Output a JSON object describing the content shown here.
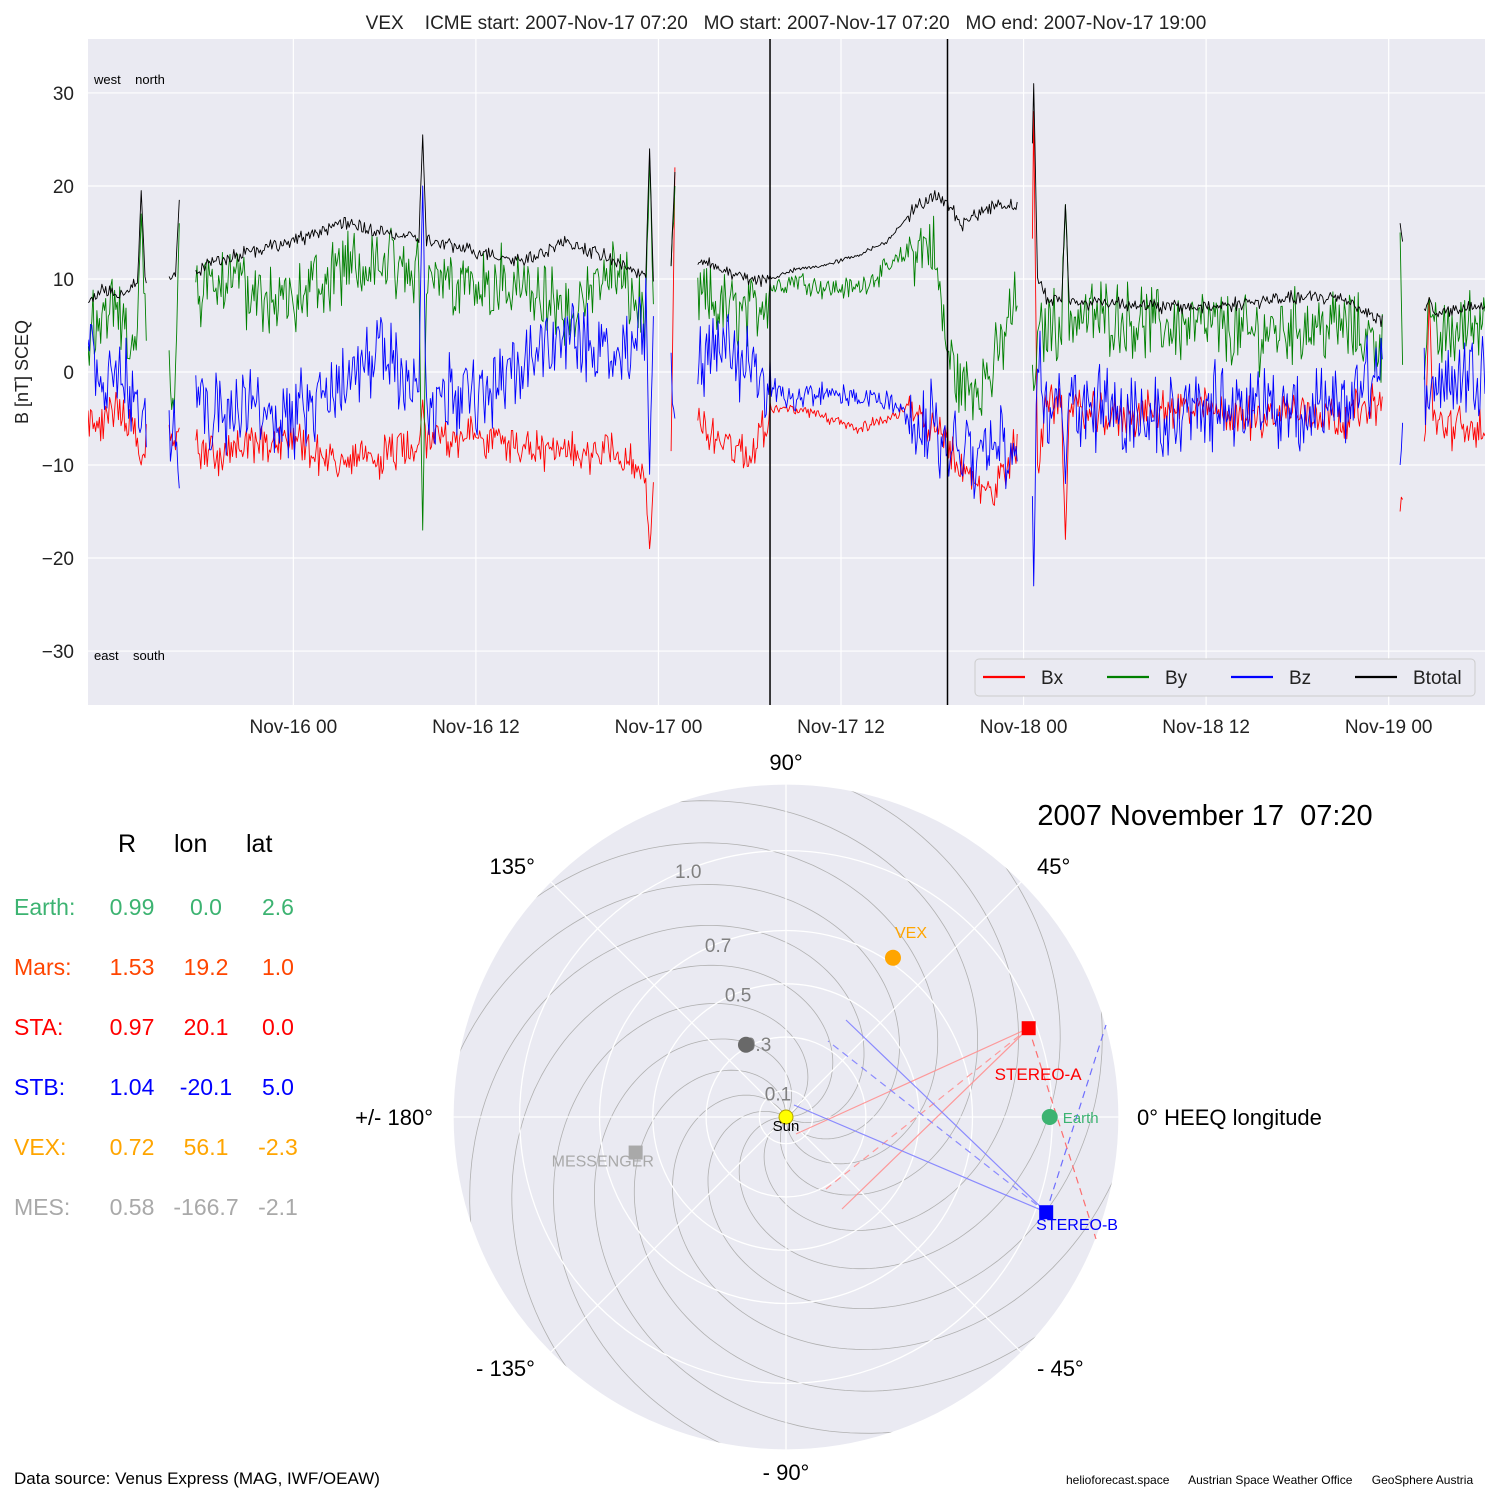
{
  "top_title": "VEX    ICME start: 2007-Nov-17 07:20   MO start: 2007-Nov-17 07:20   MO end: 2007-Nov-17 19:00",
  "chart_data": [
    {
      "type": "line",
      "title": "VEX    ICME start: 2007-Nov-17 07:20   MO start: 2007-Nov-17 07:20   MO end: 2007-Nov-17 19:00",
      "ylabel": "B [nT] SCEQ",
      "xlabel": "",
      "ylim": [
        -35.8,
        35.8
      ],
      "xlim": [
        "2007-11-15 10:30",
        "2007-11-19 06:20"
      ],
      "yticks": [
        30,
        20,
        10,
        0,
        -10,
        -20,
        -30
      ],
      "ytick_labels": [
        "30",
        "20",
        "10",
        "0",
        "−10",
        "−20",
        "−30"
      ],
      "xticks": [
        "2007-11-16 00:00",
        "2007-11-16 12:00",
        "2007-11-17 00:00",
        "2007-11-17 12:00",
        "2007-11-18 00:00",
        "2007-11-18 12:00",
        "2007-11-19 00:00"
      ],
      "xtick_labels": [
        "Nov-16 00",
        "Nov-16 12",
        "Nov-17 00",
        "Nov-17 12",
        "Nov-18 00",
        "Nov-18 12",
        "Nov-19 00"
      ],
      "grid": true,
      "legend_position": "bottom-right",
      "corner_labels": {
        "top": "west    north",
        "bottom": "east    south"
      },
      "vertical_lines": [
        "2007-11-17 07:20",
        "2007-11-17 19:00"
      ],
      "gaps": [
        [
          "2007-11-15 14:20",
          "2007-11-15 15:50"
        ],
        [
          "2007-11-15 16:30",
          "2007-11-15 17:35"
        ],
        [
          "2007-11-16 23:40",
          "2007-11-17 00:50"
        ],
        [
          "2007-11-17 01:05",
          "2007-11-17 02:35"
        ],
        [
          "2007-11-17 23:35",
          "2007-11-18 00:35"
        ],
        [
          "2007-11-18 23:35",
          "2007-11-19 00:45"
        ],
        [
          "2007-11-19 00:55",
          "2007-11-19 02:20"
        ]
      ],
      "series": [
        {
          "name": "Bx",
          "color": "#ff0000",
          "x": [
            "2007-11-15 10:30",
            "2007-11-15 11:30",
            "2007-11-15 12:30",
            "2007-11-15 13:30",
            "2007-11-15 14:10",
            "2007-11-15 16:00",
            "2007-11-15 17:40",
            "2007-11-15 19:00",
            "2007-11-15 21:00",
            "2007-11-16 00:00",
            "2007-11-16 03:00",
            "2007-11-16 06:00",
            "2007-11-16 09:00",
            "2007-11-16 12:00",
            "2007-11-16 15:00",
            "2007-11-16 18:00",
            "2007-11-16 21:00",
            "2007-11-16 23:30",
            "2007-11-17 01:00",
            "2007-11-17 02:40",
            "2007-11-17 04:00",
            "2007-11-17 06:00",
            "2007-11-17 07:20",
            "2007-11-17 09:00",
            "2007-11-17 11:00",
            "2007-11-17 13:00",
            "2007-11-17 15:00",
            "2007-11-17 16:30",
            "2007-11-17 18:00",
            "2007-11-17 19:00",
            "2007-11-17 20:00",
            "2007-11-17 21:00",
            "2007-11-17 22:00",
            "2007-11-17 23:30",
            "2007-11-18 00:40",
            "2007-11-18 01:30",
            "2007-11-18 03:00",
            "2007-11-18 06:00",
            "2007-11-18 09:00",
            "2007-11-18 12:00",
            "2007-11-18 15:00",
            "2007-11-18 18:00",
            "2007-11-18 21:00",
            "2007-11-18 23:30",
            "2007-11-19 00:50",
            "2007-11-19 02:30",
            "2007-11-19 04:00",
            "2007-11-19 06:20"
          ],
          "values": [
            -5,
            -6,
            -3,
            -7,
            -8,
            -7,
            -8,
            -9,
            -8,
            -7,
            -10,
            -9,
            -7,
            -7,
            -8,
            -9,
            -8,
            -12,
            -9,
            -6,
            -7,
            -9,
            -4,
            -4,
            -5,
            -6,
            -5,
            -4,
            -6,
            -8,
            -11,
            -12,
            -13,
            -8,
            -12,
            -3,
            -4,
            -5,
            -4,
            -4,
            -5,
            -4,
            -5,
            -3,
            -12,
            -5,
            -6,
            -6
          ]
        },
        {
          "name": "By",
          "color": "#008000",
          "x": [
            "2007-11-15 10:30",
            "2007-11-15 11:30",
            "2007-11-15 12:30",
            "2007-11-15 13:30",
            "2007-11-15 14:10",
            "2007-11-15 16:00",
            "2007-11-15 17:40",
            "2007-11-15 19:00",
            "2007-11-15 21:00",
            "2007-11-16 00:00",
            "2007-11-16 03:00",
            "2007-11-16 06:00",
            "2007-11-16 09:00",
            "2007-11-16 12:00",
            "2007-11-16 15:00",
            "2007-11-16 18:00",
            "2007-11-16 21:00",
            "2007-11-16 23:30",
            "2007-11-17 01:00",
            "2007-11-17 02:40",
            "2007-11-17 04:00",
            "2007-11-17 06:00",
            "2007-11-17 07:20",
            "2007-11-17 09:00",
            "2007-11-17 11:00",
            "2007-11-17 13:00",
            "2007-11-17 15:00",
            "2007-11-17 16:30",
            "2007-11-17 18:00",
            "2007-11-17 19:00",
            "2007-11-17 20:00",
            "2007-11-17 21:00",
            "2007-11-17 22:00",
            "2007-11-17 23:30",
            "2007-11-18 00:40",
            "2007-11-18 01:30",
            "2007-11-18 03:00",
            "2007-11-18 06:00",
            "2007-11-18 09:00",
            "2007-11-18 12:00",
            "2007-11-18 15:00",
            "2007-11-18 18:00",
            "2007-11-18 21:00",
            "2007-11-18 23:30",
            "2007-11-19 00:50",
            "2007-11-19 02:30",
            "2007-11-19 04:00",
            "2007-11-19 06:20"
          ],
          "values": [
            5,
            6,
            7,
            2,
            8,
            -2,
            8,
            10,
            9,
            7,
            11,
            12,
            10,
            10,
            9,
            6,
            11,
            5,
            10,
            8,
            7,
            6,
            9,
            10,
            9,
            9,
            11,
            13,
            14,
            2,
            -2,
            -1,
            0,
            8,
            2,
            5,
            6,
            6,
            5,
            5,
            4,
            5,
            5,
            3,
            -5,
            3,
            4,
            6
          ]
        },
        {
          "name": "Bz",
          "color": "#0000ff",
          "x": [
            "2007-11-15 10:30",
            "2007-11-15 11:30",
            "2007-11-15 12:30",
            "2007-11-15 13:30",
            "2007-11-15 14:10",
            "2007-11-15 16:00",
            "2007-11-15 17:40",
            "2007-11-15 19:00",
            "2007-11-15 21:00",
            "2007-11-16 00:00",
            "2007-11-16 03:00",
            "2007-11-16 06:00",
            "2007-11-16 09:00",
            "2007-11-16 12:00",
            "2007-11-16 15:00",
            "2007-11-16 18:00",
            "2007-11-16 21:00",
            "2007-11-16 23:30",
            "2007-11-17 01:00",
            "2007-11-17 02:40",
            "2007-11-17 04:00",
            "2007-11-17 06:00",
            "2007-11-17 07:20",
            "2007-11-17 09:00",
            "2007-11-17 11:00",
            "2007-11-17 13:00",
            "2007-11-17 15:00",
            "2007-11-17 16:30",
            "2007-11-17 18:00",
            "2007-11-17 19:00",
            "2007-11-17 20:00",
            "2007-11-17 21:00",
            "2007-11-17 22:00",
            "2007-11-17 23:30",
            "2007-11-18 00:40",
            "2007-11-18 01:30",
            "2007-11-18 03:00",
            "2007-11-18 06:00",
            "2007-11-18 09:00",
            "2007-11-18 12:00",
            "2007-11-18 15:00",
            "2007-11-18 18:00",
            "2007-11-18 21:00",
            "2007-11-18 23:30",
            "2007-11-19 00:50",
            "2007-11-19 02:30",
            "2007-11-19 04:00",
            "2007-11-19 06:20"
          ],
          "values": [
            3,
            -2,
            1,
            -3,
            -4,
            -6,
            -2,
            -5,
            -3,
            -5,
            -2,
            2,
            -3,
            -2,
            1,
            4,
            2,
            6,
            -2,
            1,
            2,
            2,
            -2,
            -3,
            -2,
            -3,
            -3,
            -5,
            -6,
            -9,
            -8,
            -10,
            -7,
            -9,
            4,
            -4,
            -3,
            -4,
            -5,
            -4,
            -3,
            -5,
            -4,
            1,
            -7,
            0,
            -1,
            1
          ]
        },
        {
          "name": "Btotal",
          "color": "#000000",
          "x": [
            "2007-11-15 10:30",
            "2007-11-15 11:30",
            "2007-11-15 12:30",
            "2007-11-15 13:30",
            "2007-11-15 14:10",
            "2007-11-15 16:00",
            "2007-11-15 17:40",
            "2007-11-15 19:00",
            "2007-11-15 21:00",
            "2007-11-16 00:00",
            "2007-11-16 03:00",
            "2007-11-16 06:00",
            "2007-11-16 09:00",
            "2007-11-16 12:00",
            "2007-11-16 15:00",
            "2007-11-16 18:00",
            "2007-11-16 21:00",
            "2007-11-16 23:30",
            "2007-11-17 01:00",
            "2007-11-17 02:40",
            "2007-11-17 04:00",
            "2007-11-17 06:00",
            "2007-11-17 07:20",
            "2007-11-17 09:00",
            "2007-11-17 11:00",
            "2007-11-17 13:00",
            "2007-11-17 15:00",
            "2007-11-17 16:30",
            "2007-11-17 18:00",
            "2007-11-17 19:00",
            "2007-11-17 20:00",
            "2007-11-17 21:00",
            "2007-11-17 22:00",
            "2007-11-17 23:30",
            "2007-11-18 00:40",
            "2007-11-18 01:30",
            "2007-11-18 03:00",
            "2007-11-18 06:00",
            "2007-11-18 09:00",
            "2007-11-18 12:00",
            "2007-11-18 15:00",
            "2007-11-18 18:00",
            "2007-11-18 21:00",
            "2007-11-18 23:30",
            "2007-11-19 00:50",
            "2007-11-19 02:30",
            "2007-11-19 04:00",
            "2007-11-19 06:20"
          ],
          "values": [
            7.5,
            9,
            8,
            9.5,
            10,
            10,
            11,
            12,
            13,
            14,
            16,
            15,
            14,
            13,
            12,
            14,
            12,
            10,
            12,
            12,
            11,
            10,
            10,
            11,
            11.5,
            12.5,
            14,
            17,
            19,
            18,
            16,
            17,
            18,
            18,
            11,
            8,
            7.5,
            7.5,
            7,
            7,
            7.5,
            8,
            8,
            5.5,
            13,
            6.5,
            6.5,
            7
          ]
        }
      ],
      "spikes": [
        {
          "t": "2007-11-15 14:00",
          "Bx": -10,
          "By": 17,
          "Bz": -6,
          "Btotal": 19.5
        },
        {
          "t": "2007-11-15 16:30",
          "Bx": -6,
          "By": 16,
          "Bz": -12.5,
          "Btotal": 18.5
        },
        {
          "t": "2007-11-16 08:30",
          "Bx": -3,
          "By": -17,
          "Bz": 20,
          "Btotal": 25.5
        },
        {
          "t": "2007-11-16 23:25",
          "Bx": -19,
          "By": 23,
          "Bz": -11,
          "Btotal": 24
        },
        {
          "t": "2007-11-17 01:05",
          "Bx": 22,
          "By": 20,
          "Bz": -5,
          "Btotal": 21.5
        },
        {
          "t": "2007-11-18 00:40",
          "Bx": 28,
          "By": -2,
          "Bz": -23,
          "Btotal": 31
        },
        {
          "t": "2007-11-18 02:45",
          "Bx": -18,
          "By": 18,
          "Bz": -12,
          "Btotal": 18
        },
        {
          "t": "2007-11-19 00:45",
          "Bx": -15,
          "By": 15,
          "Bz": -10,
          "Btotal": 16
        },
        {
          "t": "2007-11-19 02:40",
          "Bx": 8,
          "By": 8,
          "Bz": -4,
          "Btotal": 8
        }
      ]
    },
    {
      "type": "scatter",
      "subtype": "polar",
      "title": "2007 November 17  07:20",
      "radial_labels": [
        "0.1",
        "0.3",
        "0.5",
        "0.7",
        "1.0"
      ],
      "radial_values": [
        0.1,
        0.3,
        0.5,
        0.7,
        1.0
      ],
      "rmax": 1.25,
      "angle_labels": [
        {
          "deg": 0,
          "label": "0° HEEQ longitude"
        },
        {
          "deg": 45,
          "label": "45°"
        },
        {
          "deg": 90,
          "label": "90°"
        },
        {
          "deg": 135,
          "label": "135°"
        },
        {
          "deg": 180,
          "label": "+/- 180°"
        },
        {
          "deg": -135,
          "label": "- 135°"
        },
        {
          "deg": -90,
          "label": "- 90°"
        },
        {
          "deg": -45,
          "label": "- 45°"
        }
      ],
      "grid": true,
      "points": [
        {
          "name": "Sun",
          "label": "Sun",
          "r": 0.0,
          "lon": 0.0,
          "color": "#ffff00",
          "marker": "circle"
        },
        {
          "name": "Earth",
          "label": "Earth",
          "r": 0.99,
          "lon": 0.0,
          "color": "#3cb371",
          "marker": "circle"
        },
        {
          "name": "Mars",
          "label": "",
          "r": 1.53,
          "lon": 19.2,
          "color": "#ff4500",
          "marker": "circle"
        },
        {
          "name": "STEREO-A",
          "label": "STEREO-A",
          "r": 0.97,
          "lon": 20.1,
          "color": "#ff0000",
          "marker": "square"
        },
        {
          "name": "STEREO-B",
          "label": "STEREO-B",
          "r": 1.04,
          "lon": -20.1,
          "color": "#0000ff",
          "marker": "square"
        },
        {
          "name": "VEX",
          "label": "VEX",
          "r": 0.72,
          "lon": 56.1,
          "color": "#ffa500",
          "marker": "circle"
        },
        {
          "name": "MESSENGER",
          "label": "MESSENGER",
          "r": 0.58,
          "lon": -166.7,
          "color": "#a9a9a9",
          "marker": "square"
        },
        {
          "name": "Mercury",
          "label": "",
          "r": 0.31,
          "lon": 119.0,
          "color": "#696969",
          "marker": "circle"
        }
      ]
    }
  ],
  "positions_table": {
    "headers": [
      "R",
      "lon",
      "lat"
    ],
    "rows": [
      {
        "name": "Earth:",
        "r": "0.99",
        "lon": "0.0",
        "lat": "2.6",
        "color": "#3cb371"
      },
      {
        "name": "Mars:",
        "r": "1.53",
        "lon": "19.2",
        "lat": "1.0",
        "color": "#ff4500"
      },
      {
        "name": "STA:",
        "r": "0.97",
        "lon": "20.1",
        "lat": "0.0",
        "color": "#ff0000"
      },
      {
        "name": "STB:",
        "r": "1.04",
        "lon": "-20.1",
        "lat": "5.0",
        "color": "#0000ff"
      },
      {
        "name": "VEX:",
        "r": "0.72",
        "lon": "56.1",
        "lat": "-2.3",
        "color": "#ffa500"
      },
      {
        "name": "MES:",
        "r": "0.58",
        "lon": "-166.7",
        "lat": "-2.1",
        "color": "#a9a9a9"
      }
    ]
  },
  "footer": {
    "source": "Data source: Venus Express (MAG, IWF/OEAW)",
    "credits": [
      "helioforecast.space",
      "Austrian Space Weather Office",
      "GeoSphere Austria"
    ]
  }
}
